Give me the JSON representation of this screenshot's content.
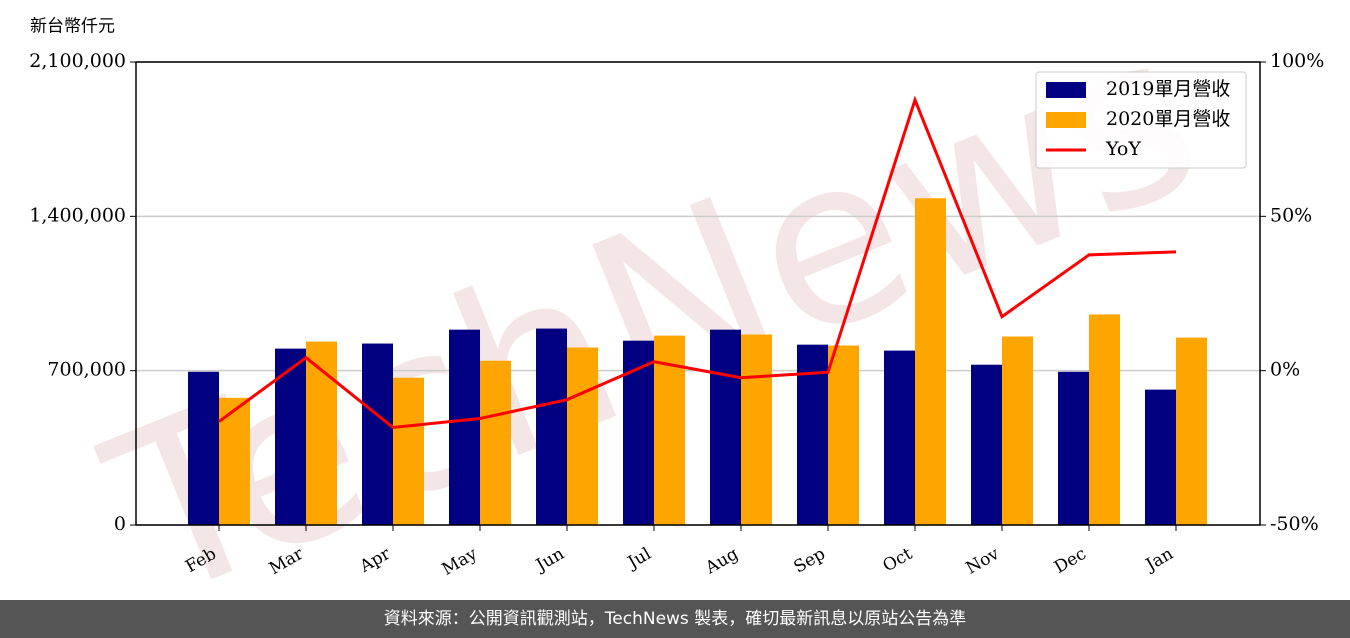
{
  "chart_data": {
    "type": "bar-line",
    "y_label": "新台幣仟元",
    "watermark": "TechNews",
    "footer": "資料來源：公開資訊觀測站，TechNews 製表，確切最新訊息以原站公告為準",
    "categories": [
      "Feb",
      "Mar",
      "Apr",
      "May",
      "Jun",
      "Jul",
      "Aug",
      "Sep",
      "Oct",
      "Nov",
      "Dec",
      "Jan"
    ],
    "series": [
      {
        "name": "2019單月營收",
        "color": "#000080",
        "kind": "bar",
        "values": [
          695000,
          800000,
          823000,
          886000,
          891000,
          836000,
          886000,
          818000,
          791000,
          727000,
          695000,
          614000
        ]
      },
      {
        "name": "2020單月營收",
        "color": "#ffa500",
        "kind": "bar",
        "values": [
          577000,
          832000,
          668000,
          745000,
          805000,
          859000,
          864000,
          814000,
          1482000,
          855000,
          955000,
          850000
        ]
      },
      {
        "name": "YoY",
        "color": "#ff0000",
        "kind": "line",
        "axis": "y2",
        "values": [
          -16.5,
          4.2,
          -18.4,
          -15.5,
          -9.4,
          2.9,
          -2.3,
          -0.5,
          87.7,
          17.5,
          37.5,
          38.5
        ]
      }
    ],
    "ylim": [
      0,
      2100000
    ],
    "yticks": [
      0,
      {
        "value": 700000,
        "label": "700,000"
      },
      {
        "value": 1400000,
        "label": "1,400,000"
      },
      {
        "value": 2100000,
        "label": "2,100,000"
      }
    ],
    "y2lim": [
      -50,
      100
    ],
    "y2ticks": [
      {
        "value": -50,
        "label": "-50%"
      },
      {
        "value": 0,
        "label": "0%"
      },
      {
        "value": 50,
        "label": "50%"
      },
      {
        "value": 100,
        "label": "100%"
      }
    ],
    "grid": true,
    "legend": "upper right"
  }
}
